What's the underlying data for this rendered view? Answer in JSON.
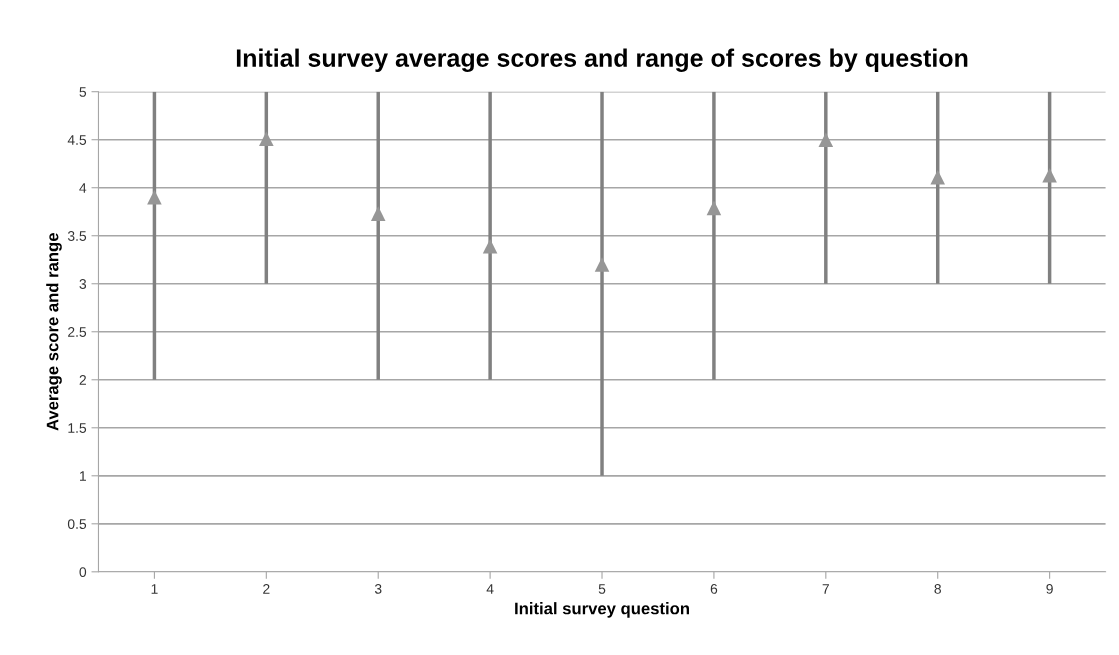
{
  "chart_data": {
    "type": "scatter",
    "title": "Initial survey average scores and range of scores by question",
    "xlabel": "Initial survey question",
    "ylabel": "Average score and range",
    "categories": [
      "1",
      "2",
      "3",
      "4",
      "5",
      "6",
      "7",
      "8",
      "9"
    ],
    "values": [
      3.9,
      4.51,
      3.73,
      3.39,
      3.2,
      3.79,
      4.5,
      4.11,
      4.13
    ],
    "errors": [
      [
        2,
        5
      ],
      [
        3,
        5
      ],
      [
        2,
        5
      ],
      [
        2,
        5
      ],
      [
        1,
        5
      ],
      [
        2,
        5
      ],
      [
        3,
        5
      ],
      [
        3,
        5
      ],
      [
        3,
        5
      ]
    ],
    "color": "#969696",
    "marker": "triangle",
    "grid": "y",
    "ylim": [
      0,
      5
    ],
    "yticks": [
      0,
      0.5,
      1,
      1.5,
      2,
      2.5,
      3,
      3.5,
      4,
      4.5,
      5
    ]
  }
}
